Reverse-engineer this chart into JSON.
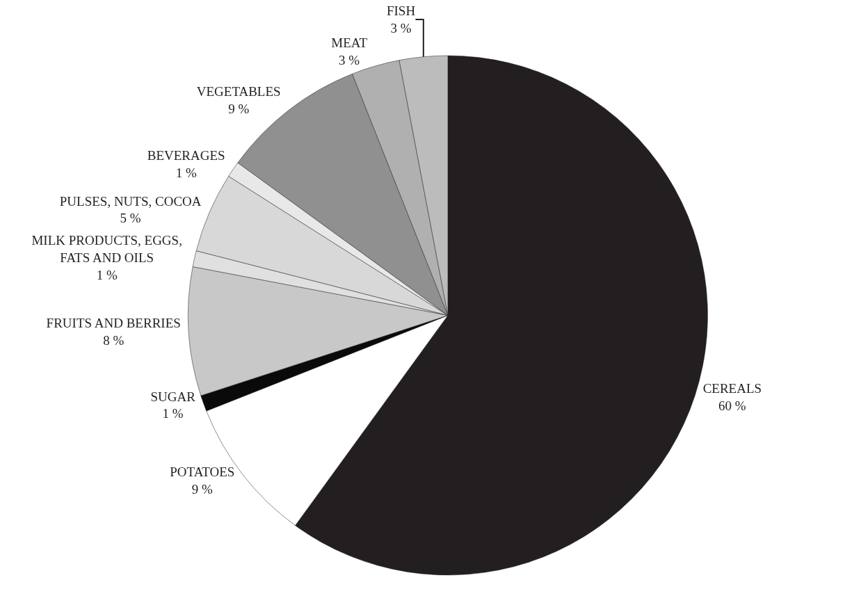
{
  "chart_data": {
    "type": "pie",
    "categories": [
      "CEREALS",
      "POTATOES",
      "SUGAR",
      "FRUITS AND BERRIES",
      "MILK PRODUCTS, EGGS, FATS AND OILS",
      "PULSES, NUTS, COCOA",
      "BEVERAGES",
      "VEGETABLES",
      "MEAT",
      "FISH"
    ],
    "values": [
      60,
      9,
      1,
      8,
      1,
      5,
      1,
      9,
      3,
      3
    ],
    "value_labels": [
      "60 %",
      "9 %",
      "1 %",
      "8 %",
      "1 %",
      "5 %",
      "1 %",
      "9 %",
      "3 %",
      "3 %"
    ],
    "colors": [
      "#231f20",
      "#ffffff",
      "#0a0a0a",
      "#c8c8c8",
      "#e0e0e0",
      "#d8d8d8",
      "#e8e8e8",
      "#909090",
      "#b0b0b0",
      "#bcbcbc"
    ],
    "legend": false
  }
}
